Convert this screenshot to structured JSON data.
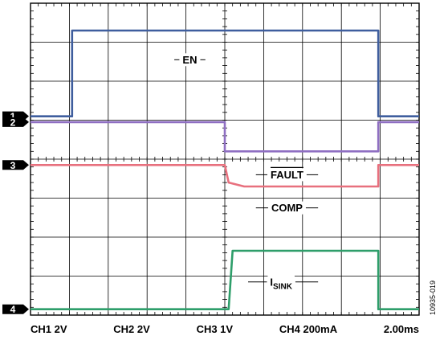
{
  "chart_data": {
    "type": "line",
    "title": "",
    "grid": true,
    "x_divisions": 10,
    "y_divisions": 8,
    "timebase": "2.00ms",
    "series": [
      {
        "name": "EN",
        "marker": "1",
        "color": "#3f5e9e",
        "points": [
          [
            0,
            5.1
          ],
          [
            1.07,
            5.1
          ],
          [
            1.07,
            7.3
          ],
          [
            8.95,
            7.3
          ],
          [
            8.95,
            5.1
          ],
          [
            10,
            5.1
          ]
        ]
      },
      {
        "name": "FAULT",
        "overline": true,
        "marker": "2",
        "color": "#8f6fc2",
        "points": [
          [
            0,
            4.95
          ],
          [
            5.0,
            4.95
          ],
          [
            5.0,
            4.2
          ],
          [
            8.95,
            4.2
          ],
          [
            8.95,
            4.95
          ],
          [
            10,
            4.95
          ]
        ]
      },
      {
        "name": "COMP",
        "marker": "3",
        "color": "#e8707e",
        "points": [
          [
            0,
            3.85
          ],
          [
            5.0,
            3.85
          ],
          [
            5.1,
            3.4
          ],
          [
            5.5,
            3.3
          ],
          [
            8.95,
            3.3
          ],
          [
            8.95,
            3.85
          ],
          [
            10,
            3.85
          ]
        ]
      },
      {
        "name": "ISINK",
        "name_main": "I",
        "name_sub": "SINK",
        "marker": "4",
        "color": "#2e9e6a",
        "points": [
          [
            0,
            0.15
          ],
          [
            5.1,
            0.15
          ],
          [
            5.2,
            1.65
          ],
          [
            8.95,
            1.65
          ],
          [
            8.95,
            0.15
          ],
          [
            10,
            0.15
          ]
        ]
      }
    ],
    "channel_scales": [
      "CH1 2V",
      "CH2 2V",
      "CH3 1V",
      "CH4 200mA"
    ]
  },
  "figure_id": "10935-019"
}
